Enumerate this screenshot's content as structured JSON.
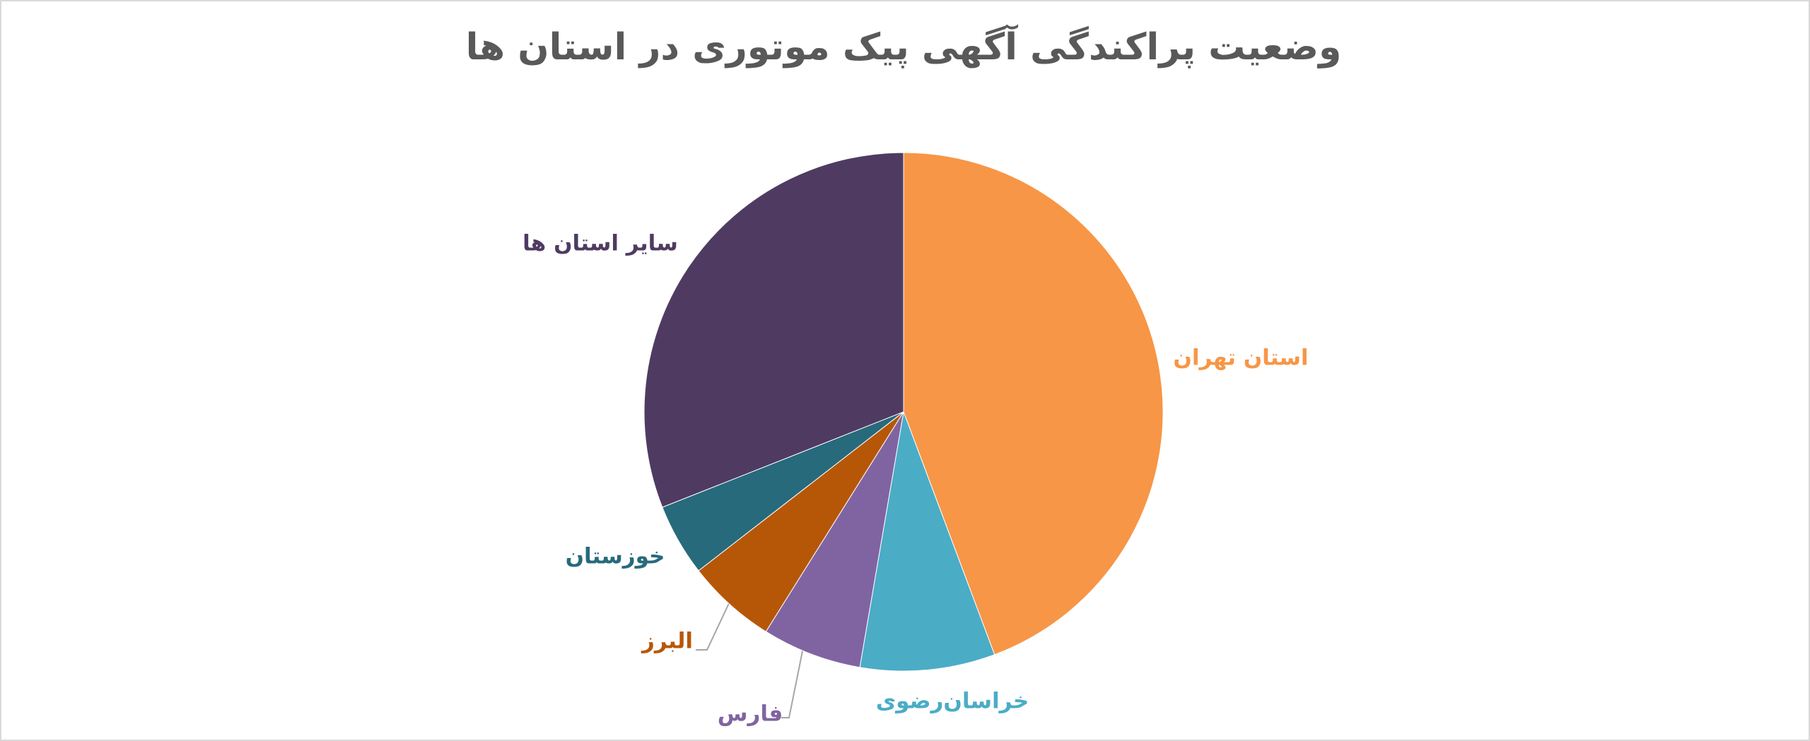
{
  "chart_data": {
    "type": "pie",
    "title": "وضعیت پراکندگی آگهی پیک موتوری در استان ها",
    "categories": [
      "استان تهران",
      "خراسان‌رضوی",
      "فارس",
      "البرز",
      "خوزستان",
      "سایر استان ها"
    ],
    "values": [
      44.3,
      8.4,
      6.2,
      5.6,
      4.5,
      31.0
    ],
    "colors": [
      "#F79646",
      "#4BACC6",
      "#8064A2",
      "#B65708",
      "#276A7C",
      "#4F3B62"
    ]
  }
}
